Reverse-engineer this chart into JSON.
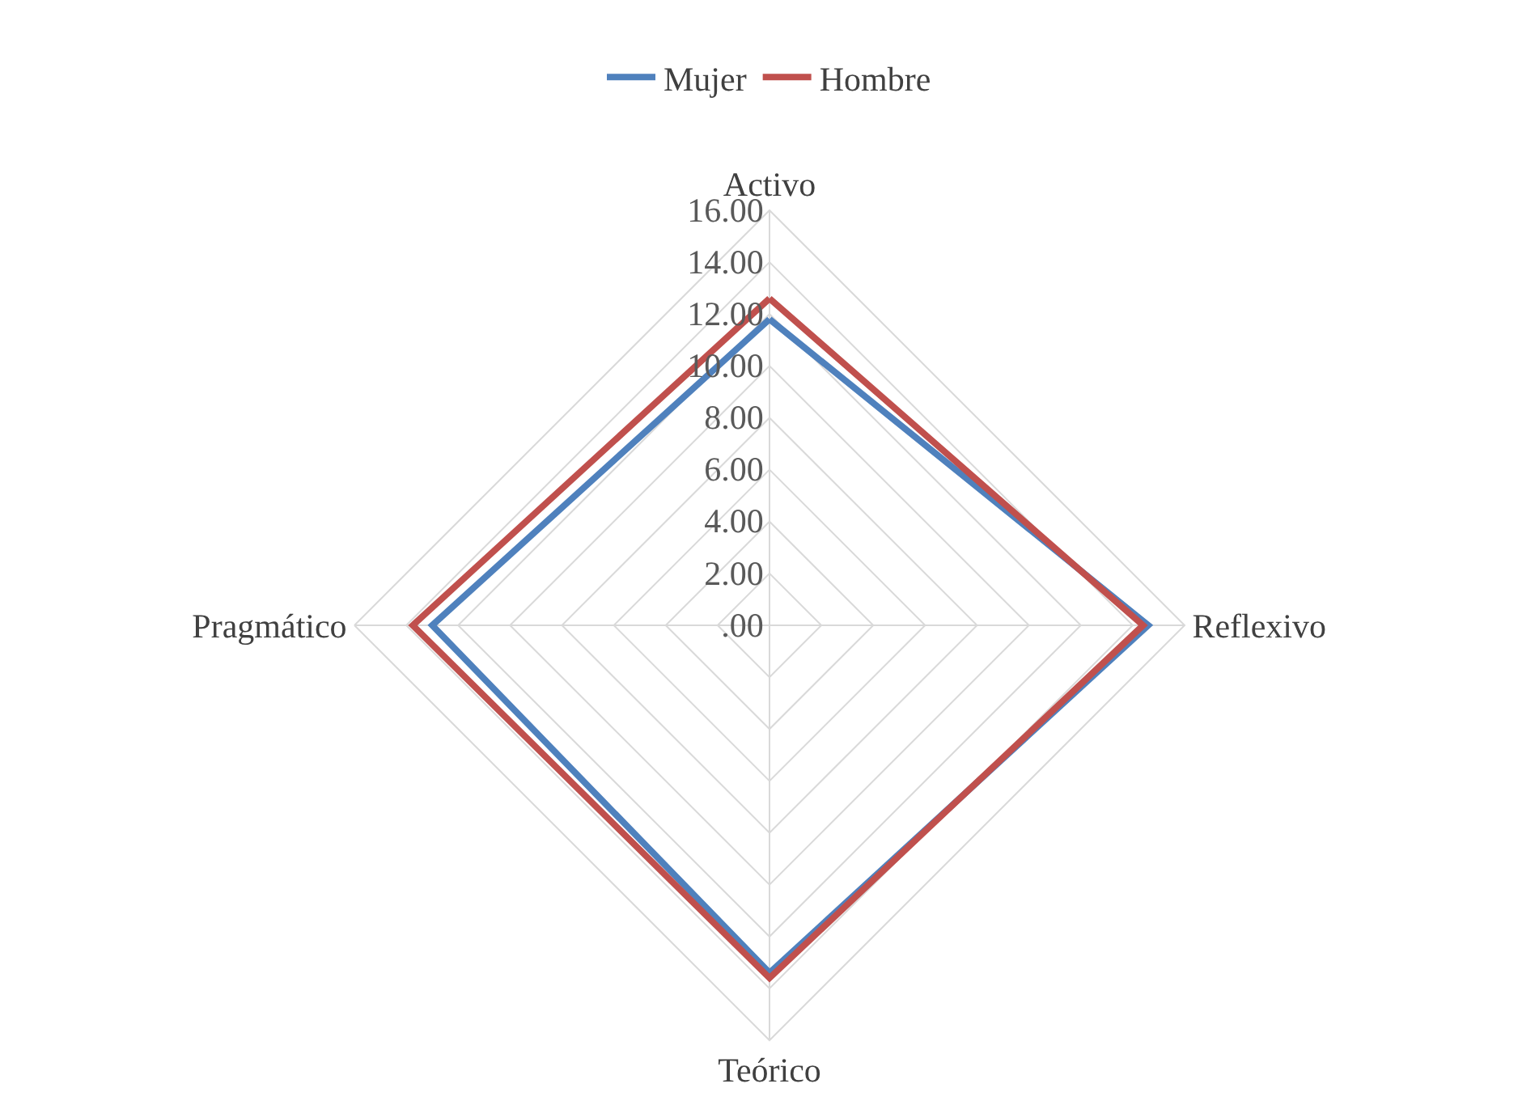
{
  "chart_data": {
    "type": "radar",
    "categories": [
      "Activo",
      "Reflexivo",
      "Teórico",
      "Pragmático"
    ],
    "series": [
      {
        "name": "Mujer",
        "color": "#4f81bd",
        "values": [
          11.8,
          14.6,
          13.4,
          13.0
        ]
      },
      {
        "name": "Hombre",
        "color": "#c0504d",
        "values": [
          12.6,
          14.4,
          13.6,
          13.75
        ]
      }
    ],
    "ylim": [
      0,
      16
    ],
    "yticks": [
      {
        "value": 0,
        "label": ".00"
      },
      {
        "value": 2,
        "label": "2.00"
      },
      {
        "value": 4,
        "label": "4.00"
      },
      {
        "value": 6,
        "label": "6.00"
      },
      {
        "value": 8,
        "label": "8.00"
      },
      {
        "value": 10,
        "label": "10.00"
      },
      {
        "value": 12,
        "label": "12.00"
      },
      {
        "value": 14,
        "label": "14.00"
      },
      {
        "value": 16,
        "label": "16.00"
      }
    ],
    "grid": true,
    "legend": "top",
    "marker": "none",
    "line_style": "solid"
  }
}
